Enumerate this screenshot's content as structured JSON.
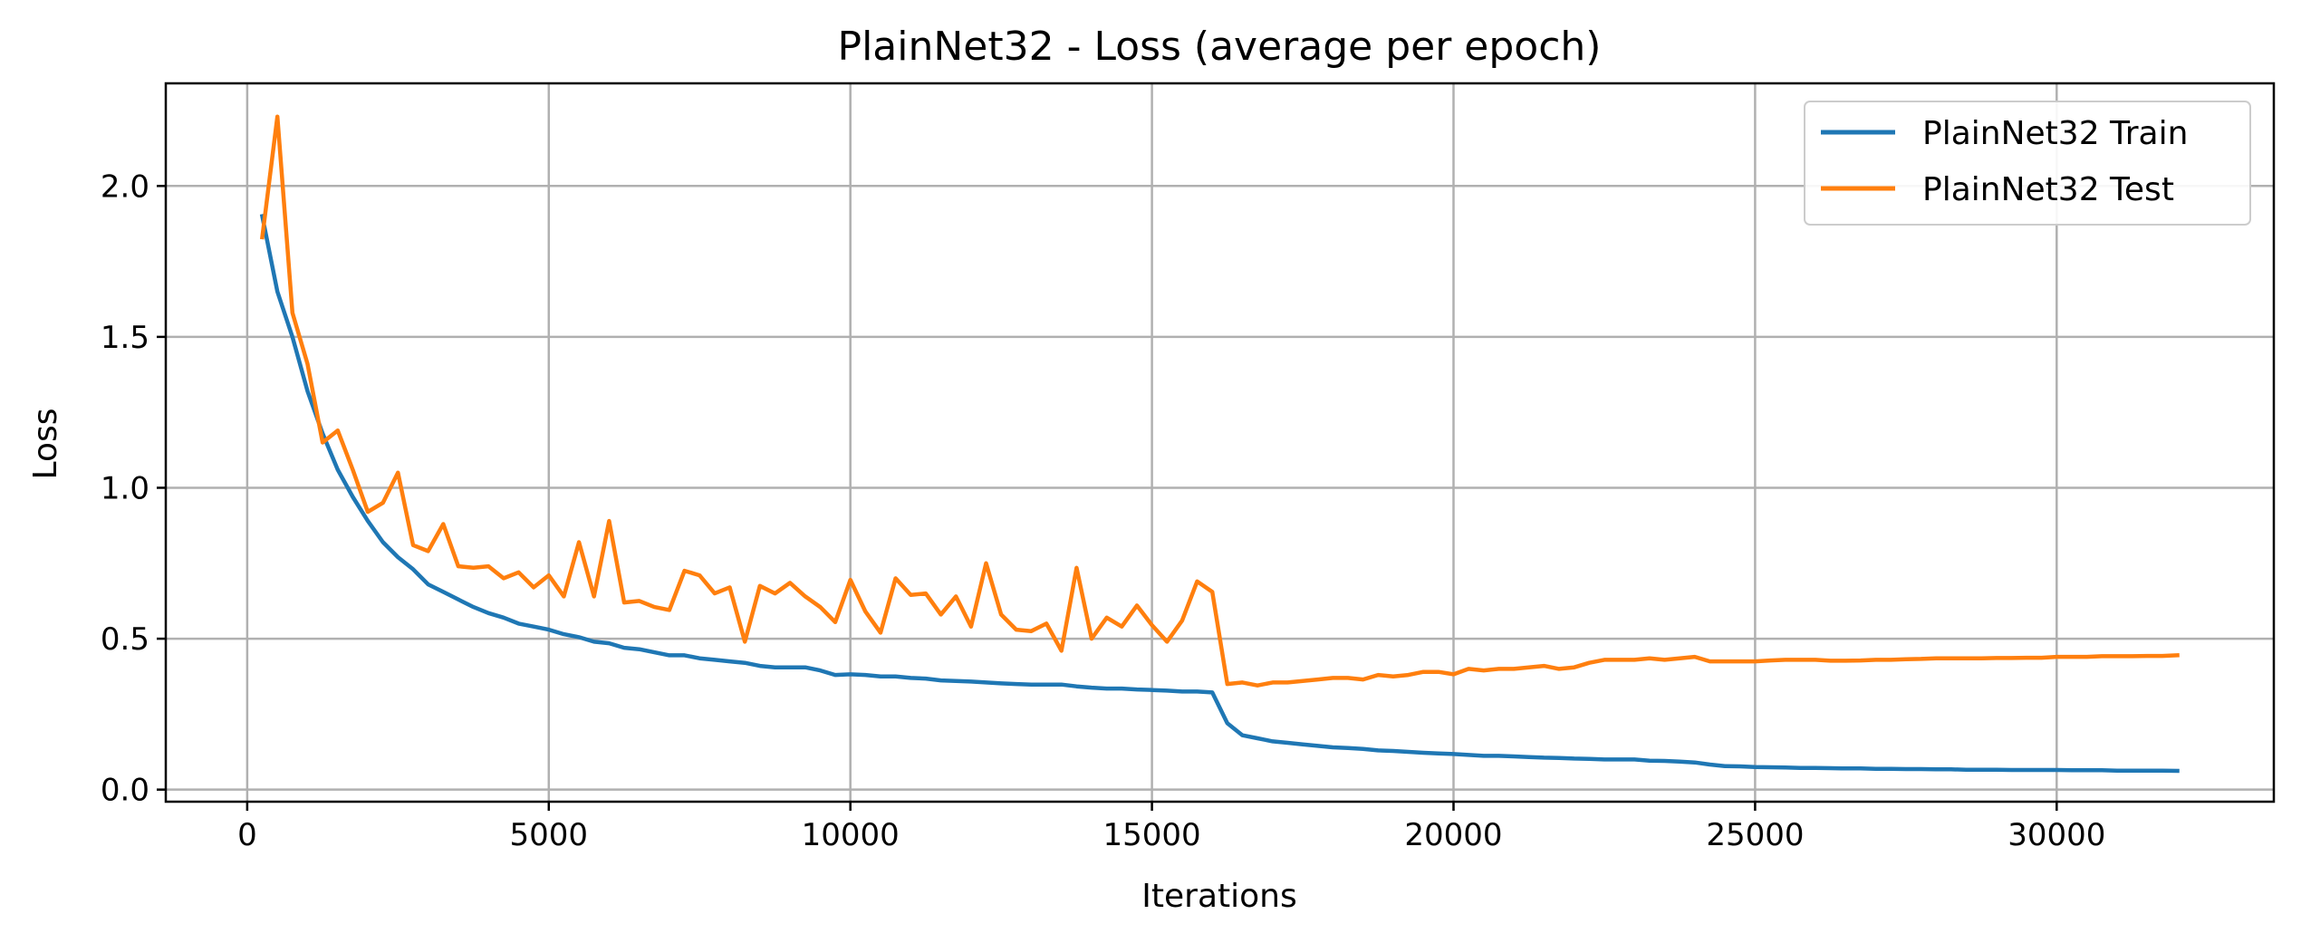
{
  "chart_data": {
    "type": "line",
    "title": "PlainNet32 - Loss (average per epoch)",
    "xlabel": "Iterations",
    "ylabel": "Loss",
    "xlim": [
      -1350,
      33600
    ],
    "ylim": [
      -0.04,
      2.34
    ],
    "xticks": [
      0,
      5000,
      10000,
      15000,
      20000,
      25000,
      30000
    ],
    "yticks": [
      0.0,
      0.5,
      1.0,
      1.5,
      2.0
    ],
    "xtick_labels": [
      "0",
      "5000",
      "10000",
      "15000",
      "20000",
      "25000",
      "30000"
    ],
    "ytick_labels": [
      "0.0",
      "0.5",
      "1.0",
      "1.5",
      "2.0"
    ],
    "grid": true,
    "legend_position": "top-right",
    "colors": {
      "train": "#1f77b4",
      "test": "#ff7f0e",
      "grid": "#b0b0b0"
    },
    "series": [
      {
        "name": "PlainNet32 Train",
        "color": "#1f77b4",
        "x": [
          250,
          500,
          750,
          1000,
          1250,
          1500,
          1750,
          2000,
          2250,
          2500,
          2750,
          3000,
          3250,
          3500,
          3750,
          4000,
          4250,
          4500,
          4750,
          5000,
          5250,
          5500,
          5750,
          6000,
          6250,
          6500,
          6750,
          7000,
          7250,
          7500,
          7750,
          8000,
          8250,
          8500,
          8750,
          9000,
          9250,
          9500,
          9750,
          10000,
          10250,
          10500,
          10750,
          11000,
          11250,
          11500,
          11750,
          12000,
          12250,
          12500,
          12750,
          13000,
          13250,
          13500,
          13750,
          14000,
          14250,
          14500,
          14750,
          15000,
          15250,
          15500,
          15750,
          16000,
          16250,
          16500,
          16750,
          17000,
          17250,
          17500,
          17750,
          18000,
          18250,
          18500,
          18750,
          19000,
          19250,
          19500,
          19750,
          20000,
          20250,
          20500,
          20750,
          21000,
          21250,
          21500,
          21750,
          22000,
          22250,
          22500,
          22750,
          23000,
          23250,
          23500,
          23750,
          24000,
          24250,
          24500,
          24750,
          25000,
          25250,
          25500,
          25750,
          26000,
          26250,
          26500,
          26750,
          27000,
          27250,
          27500,
          27750,
          28000,
          28250,
          28500,
          28750,
          29000,
          29250,
          29500,
          29750,
          30000,
          30250,
          30500,
          30750,
          31000,
          31250,
          31500,
          31750,
          32000
        ],
        "y": [
          1.9,
          1.65,
          1.5,
          1.32,
          1.18,
          1.06,
          0.97,
          0.89,
          0.82,
          0.77,
          0.73,
          0.68,
          0.655,
          0.63,
          0.605,
          0.585,
          0.57,
          0.55,
          0.54,
          0.53,
          0.515,
          0.505,
          0.49,
          0.485,
          0.47,
          0.465,
          0.455,
          0.445,
          0.445,
          0.435,
          0.43,
          0.425,
          0.42,
          0.41,
          0.405,
          0.405,
          0.405,
          0.395,
          0.38,
          0.382,
          0.38,
          0.375,
          0.375,
          0.37,
          0.368,
          0.362,
          0.36,
          0.358,
          0.355,
          0.352,
          0.35,
          0.348,
          0.348,
          0.348,
          0.342,
          0.338,
          0.335,
          0.335,
          0.332,
          0.33,
          0.328,
          0.325,
          0.325,
          0.322,
          0.22,
          0.18,
          0.17,
          0.16,
          0.155,
          0.15,
          0.145,
          0.14,
          0.138,
          0.135,
          0.13,
          0.128,
          0.125,
          0.122,
          0.12,
          0.118,
          0.115,
          0.112,
          0.112,
          0.11,
          0.108,
          0.106,
          0.105,
          0.103,
          0.102,
          0.1,
          0.1,
          0.1,
          0.096,
          0.095,
          0.093,
          0.09,
          0.083,
          0.078,
          0.077,
          0.075,
          0.074,
          0.073,
          0.072,
          0.072,
          0.071,
          0.07,
          0.07,
          0.069,
          0.069,
          0.068,
          0.068,
          0.067,
          0.067,
          0.066,
          0.066,
          0.066,
          0.065,
          0.065,
          0.065,
          0.065,
          0.064,
          0.064,
          0.064,
          0.063,
          0.063,
          0.063,
          0.063,
          0.062
        ]
      },
      {
        "name": "PlainNet32 Test",
        "color": "#ff7f0e",
        "x": [
          250,
          500,
          750,
          1000,
          1250,
          1500,
          1750,
          2000,
          2250,
          2500,
          2750,
          3000,
          3250,
          3500,
          3750,
          4000,
          4250,
          4500,
          4750,
          5000,
          5250,
          5500,
          5750,
          6000,
          6250,
          6500,
          6750,
          7000,
          7250,
          7500,
          7750,
          8000,
          8250,
          8500,
          8750,
          9000,
          9250,
          9500,
          9750,
          10000,
          10250,
          10500,
          10750,
          11000,
          11250,
          11500,
          11750,
          12000,
          12250,
          12500,
          12750,
          13000,
          13250,
          13500,
          13750,
          14000,
          14250,
          14500,
          14750,
          15000,
          15250,
          15500,
          15750,
          16000,
          16250,
          16500,
          16750,
          17000,
          17250,
          17500,
          17750,
          18000,
          18250,
          18500,
          18750,
          19000,
          19250,
          19500,
          19750,
          20000,
          20250,
          20500,
          20750,
          21000,
          21250,
          21500,
          21750,
          22000,
          22250,
          22500,
          22750,
          23000,
          23250,
          23500,
          23750,
          24000,
          24250,
          24500,
          24750,
          25000,
          25250,
          25500,
          25750,
          26000,
          26250,
          26500,
          26750,
          27000,
          27250,
          27500,
          27750,
          28000,
          28250,
          28500,
          28750,
          29000,
          29250,
          29500,
          29750,
          30000,
          30250,
          30500,
          30750,
          31000,
          31250,
          31500,
          31750,
          32000
        ],
        "y": [
          1.83,
          2.23,
          1.58,
          1.41,
          1.15,
          1.19,
          1.06,
          0.92,
          0.95,
          1.05,
          0.81,
          0.79,
          0.88,
          0.74,
          0.735,
          0.74,
          0.7,
          0.72,
          0.67,
          0.71,
          0.64,
          0.82,
          0.64,
          0.89,
          0.62,
          0.625,
          0.605,
          0.595,
          0.725,
          0.71,
          0.65,
          0.67,
          0.49,
          0.675,
          0.65,
          0.685,
          0.64,
          0.605,
          0.555,
          0.695,
          0.59,
          0.52,
          0.7,
          0.645,
          0.65,
          0.58,
          0.64,
          0.54,
          0.75,
          0.58,
          0.53,
          0.525,
          0.55,
          0.46,
          0.735,
          0.5,
          0.57,
          0.54,
          0.61,
          0.545,
          0.49,
          0.56,
          0.69,
          0.655,
          0.35,
          0.355,
          0.345,
          0.355,
          0.355,
          0.36,
          0.365,
          0.37,
          0.37,
          0.365,
          0.38,
          0.375,
          0.38,
          0.39,
          0.39,
          0.382,
          0.4,
          0.395,
          0.4,
          0.4,
          0.405,
          0.41,
          0.4,
          0.405,
          0.42,
          0.43,
          0.43,
          0.43,
          0.435,
          0.43,
          0.435,
          0.44,
          0.425,
          0.425,
          0.425,
          0.425,
          0.428,
          0.43,
          0.43,
          0.43,
          0.427,
          0.427,
          0.428,
          0.43,
          0.43,
          0.432,
          0.433,
          0.435,
          0.435,
          0.435,
          0.435,
          0.436,
          0.436,
          0.437,
          0.437,
          0.44,
          0.44,
          0.44,
          0.442,
          0.442,
          0.442,
          0.443,
          0.443,
          0.445
        ]
      }
    ]
  }
}
